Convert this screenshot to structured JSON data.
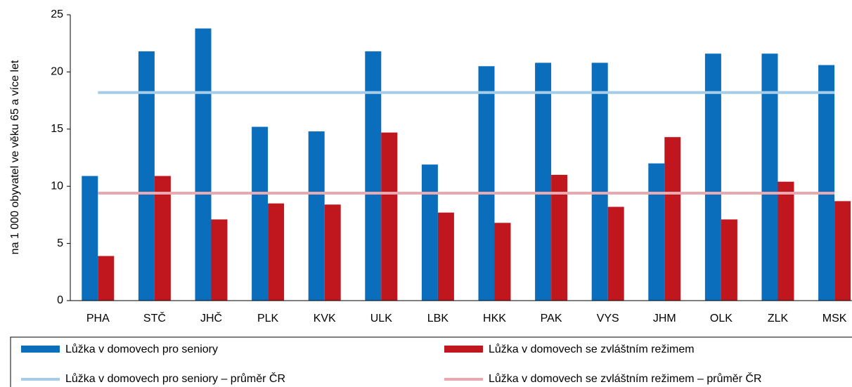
{
  "chart_data": {
    "type": "bar",
    "y_label": "na 1 000 obyvatel ve věku 65 a více let",
    "categories": [
      "PHA",
      "STČ",
      "JHČ",
      "PLK",
      "KVK",
      "ULK",
      "LBK",
      "HKK",
      "PAK",
      "VYS",
      "JHM",
      "OLK",
      "ZLK",
      "MSK"
    ],
    "series": [
      {
        "name": "Lůžka v domovech pro seniory",
        "color": "#0a6ebd",
        "values": [
          10.9,
          21.8,
          23.8,
          15.2,
          14.8,
          21.8,
          11.9,
          20.5,
          20.8,
          20.8,
          12.0,
          21.6,
          21.6,
          20.6
        ]
      },
      {
        "name": "Lůžka v domovech se zvláštním režimem",
        "color": "#c0171f",
        "values": [
          3.9,
          10.9,
          7.1,
          8.5,
          8.4,
          14.7,
          7.7,
          6.8,
          11.0,
          8.2,
          14.3,
          7.1,
          10.4,
          8.7
        ]
      }
    ],
    "reference_lines": [
      {
        "name": "Lůžka v domovech pro seniory – průměr ČR",
        "color": "#a6cde8",
        "value": 18.2
      },
      {
        "name": "Lůžka v domovech se zvláštním režimem – průměr ČR",
        "color": "#e8a9b0",
        "value": 9.4
      }
    ],
    "ylim": [
      0,
      25
    ],
    "yticks": [
      0,
      5,
      10,
      15,
      20,
      25
    ],
    "grid": false
  }
}
